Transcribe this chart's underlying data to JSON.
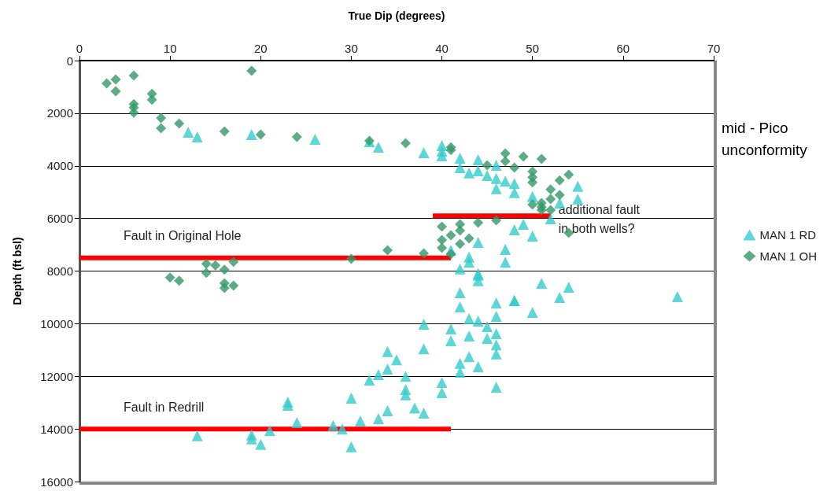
{
  "chart_data": {
    "type": "scatter",
    "xlabel": "True Dip (degrees)",
    "ylabel": "Depth (ft bsl)",
    "xlim": [
      0,
      70
    ],
    "xticks": [
      0,
      10,
      20,
      30,
      40,
      50,
      60,
      70
    ],
    "ylim": [
      16000,
      0
    ],
    "yticks": [
      0,
      2000,
      4000,
      6000,
      8000,
      10000,
      12000,
      14000,
      16000
    ],
    "grid": "y",
    "legend": "right",
    "series": [
      {
        "name": "MAN 1 RD",
        "color": "#33cccc",
        "marker": "triangle",
        "x": [
          12,
          13,
          19,
          26,
          32,
          33,
          38,
          40,
          40,
          40,
          42,
          44,
          46,
          42,
          43,
          44,
          45,
          46,
          47,
          48,
          46,
          48,
          55,
          55,
          50,
          53,
          52,
          49,
          48,
          50,
          47,
          47,
          44,
          43,
          43,
          41,
          42,
          44,
          44,
          51,
          54,
          53,
          48,
          50,
          66,
          44,
          42,
          42,
          46,
          46,
          48,
          43,
          44,
          45,
          46,
          41,
          41,
          43,
          45,
          46,
          46,
          43,
          42,
          44,
          42,
          40,
          40,
          46,
          38,
          38,
          38,
          34,
          35,
          34,
          33,
          32,
          36,
          36,
          36,
          37,
          30,
          34,
          33,
          31,
          23,
          23,
          24,
          28,
          29,
          21,
          13,
          19,
          19,
          20,
          30
        ],
        "values": [
          2720,
          2900,
          2810,
          2990,
          3080,
          3290,
          3500,
          3230,
          3440,
          3620,
          3710,
          3770,
          3980,
          4070,
          4270,
          4190,
          4370,
          4480,
          4580,
          4670,
          4870,
          5020,
          4780,
          5260,
          5170,
          5410,
          6010,
          6220,
          6430,
          6670,
          7180,
          7660,
          6910,
          7470,
          7660,
          7210,
          7920,
          8160,
          8100,
          8460,
          8610,
          9000,
          9120,
          9570,
          8970,
          8370,
          8820,
          9360,
          9210,
          9720,
          9120,
          9810,
          9900,
          10110,
          10380,
          10200,
          10650,
          10470,
          10560,
          10800,
          11150,
          11250,
          11510,
          11630,
          11840,
          12230,
          12620,
          12410,
          13400,
          10020,
          10950,
          11060,
          11370,
          11720,
          11930,
          12140,
          12000,
          12500,
          12700,
          13200,
          12830,
          13310,
          13610,
          13700,
          12980,
          13100,
          13760,
          13870,
          14000,
          14060,
          14260,
          14230,
          14380,
          14590,
          14680
        ]
      },
      {
        "name": "MAN 1 OH",
        "color": "#339966",
        "marker": "diamond",
        "x": [
          3,
          4,
          4,
          6,
          8,
          8,
          6,
          6,
          6,
          9,
          9,
          11,
          16,
          19,
          20,
          24,
          32,
          36,
          41,
          41,
          47,
          49,
          51,
          45,
          47,
          48,
          50,
          50,
          50,
          53,
          54,
          52,
          53,
          50,
          51,
          52,
          51,
          52,
          51,
          54,
          46,
          44,
          42,
          40,
          42,
          41,
          40,
          43,
          42,
          40,
          41,
          38,
          34,
          30,
          10,
          11,
          14,
          14,
          15,
          16,
          17,
          16,
          17,
          16
        ],
        "values": [
          870,
          720,
          1170,
          570,
          1260,
          1490,
          1650,
          1790,
          1980,
          2180,
          2570,
          2390,
          2690,
          390,
          2810,
          2900,
          3050,
          3140,
          3300,
          3400,
          3530,
          3650,
          3740,
          3980,
          3830,
          4070,
          4220,
          4430,
          4630,
          4550,
          4340,
          4900,
          5110,
          5470,
          5410,
          5260,
          5680,
          5680,
          5560,
          6550,
          6070,
          6160,
          6220,
          6310,
          6460,
          6640,
          6820,
          6760,
          6970,
          7120,
          7360,
          7330,
          7210,
          7540,
          8250,
          8370,
          7720,
          8070,
          7780,
          7950,
          7650,
          8460,
          8550,
          8640
        ]
      },
      {
        "type": "line",
        "name": "Fault in Original Hole",
        "color": "#ff0000",
        "marker": "none",
        "x": [
          0,
          41
        ],
        "values": [
          7500,
          7500
        ]
      },
      {
        "type": "line",
        "name": "additional fault\nin both wells?",
        "color": "#ff0000",
        "marker": "none",
        "x": [
          39,
          52
        ],
        "values": [
          5900,
          5900
        ]
      },
      {
        "type": "line",
        "name": "Fault in Redrill",
        "color": "#ff0000",
        "marker": "none",
        "x": [
          0,
          41
        ],
        "values": [
          14000,
          14000
        ]
      }
    ],
    "annotations": [
      "mid - Pico unconformity"
    ]
  }
}
